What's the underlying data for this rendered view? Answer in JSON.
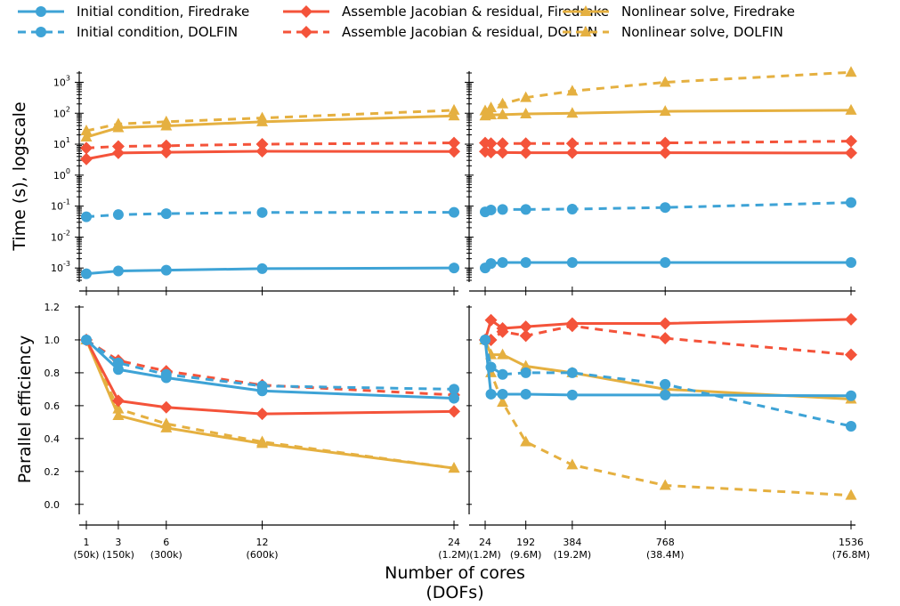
{
  "chart_data": {
    "type": "line",
    "xlabel_line1": "Number of cores",
    "xlabel_line2": "(DOFs)",
    "legend": [
      {
        "key": "ic_fd",
        "label": "Initial condition, Firedrake"
      },
      {
        "key": "ic_df",
        "label": "Initial condition, DOLFIN"
      },
      {
        "key": "asm_fd",
        "label": "Assemble Jacobian & residual, Firedrake"
      },
      {
        "key": "asm_df",
        "label": "Assemble Jacobian & residual, DOLFIN"
      },
      {
        "key": "nls_fd",
        "label": "Nonlinear solve, Firedrake"
      },
      {
        "key": "nls_df",
        "label": "Nonlinear solve, DOLFIN"
      }
    ],
    "series_styles": {
      "ic_fd": {
        "color": "#3ea3d6",
        "marker": "circle",
        "dash": false
      },
      "ic_df": {
        "color": "#3ea3d6",
        "marker": "circle",
        "dash": true
      },
      "asm_fd": {
        "color": "#f4533a",
        "marker": "diamond",
        "dash": false
      },
      "asm_df": {
        "color": "#f4533a",
        "marker": "diamond",
        "dash": true
      },
      "nls_fd": {
        "color": "#e5b040",
        "marker": "triangle",
        "dash": false
      },
      "nls_df": {
        "color": "#e5b040",
        "marker": "triangle",
        "dash": true
      }
    },
    "panels": [
      {
        "id": "strong_time",
        "ylabel": "Time (s), logscale",
        "yscale": "log",
        "ylim": [
          0.0004,
          2000
        ],
        "xlim": [
          0,
          25
        ],
        "yticks": [
          {
            "base": "10",
            "exp": "3",
            "v": 1000
          },
          {
            "base": "10",
            "exp": "2",
            "v": 100
          },
          {
            "base": "10",
            "exp": "1",
            "v": 10
          },
          {
            "base": "10",
            "exp": "0",
            "v": 1
          },
          {
            "base": "10",
            "exp": "-1",
            "v": 0.1
          },
          {
            "base": "10",
            "exp": "-2",
            "v": 0.01
          },
          {
            "base": "10",
            "exp": "-3",
            "v": 0.001
          }
        ],
        "x": [
          1,
          3,
          6,
          12,
          24
        ],
        "series": {
          "ic_fd": [
            0.00065,
            0.0008,
            0.00085,
            0.00095,
            0.001
          ],
          "ic_df": [
            0.045,
            0.053,
            0.057,
            0.062,
            0.063
          ],
          "asm_fd": [
            3.3,
            5.2,
            5.5,
            5.9,
            5.8
          ],
          "asm_df": [
            7.5,
            8.5,
            8.9,
            10,
            11
          ],
          "nls_fd": [
            17,
            34,
            39,
            53,
            82
          ],
          "nls_df": [
            27,
            45,
            53,
            70,
            125
          ]
        }
      },
      {
        "id": "weak_time",
        "ylabel": "",
        "yscale": "log",
        "ylim": [
          0.0004,
          2000
        ],
        "xlim": [
          0,
          1536
        ],
        "yticks": [],
        "x": [
          24,
          48,
          96,
          192,
          384,
          768,
          1536
        ],
        "series": {
          "ic_fd": [
            0.001,
            0.0014,
            0.0015,
            0.0015,
            0.0015,
            0.0015,
            0.0015
          ],
          "ic_df": [
            0.065,
            0.075,
            0.078,
            0.078,
            0.08,
            0.09,
            0.13
          ],
          "asm_fd": [
            5.8,
            5.5,
            5.4,
            5.3,
            5.3,
            5.3,
            5.2
          ],
          "asm_df": [
            11,
            10.5,
            10.5,
            10.5,
            10.5,
            11,
            12.5
          ],
          "nls_fd": [
            82,
            88,
            90,
            95,
            100,
            115,
            125
          ],
          "nls_df": [
            120,
            150,
            200,
            320,
            520,
            1000,
            2100
          ]
        }
      },
      {
        "id": "strong_eff",
        "ylabel": "Parallel efficiency",
        "yscale": "linear",
        "ylim": [
          -0.05,
          1.2
        ],
        "xlim": [
          0,
          25
        ],
        "yticks": [
          {
            "label": "0.0",
            "v": 0.0
          },
          {
            "label": "0.2",
            "v": 0.2
          },
          {
            "label": "0.4",
            "v": 0.4
          },
          {
            "label": "0.6",
            "v": 0.6
          },
          {
            "label": "0.8",
            "v": 0.8
          },
          {
            "label": "1.0",
            "v": 1.0
          },
          {
            "label": "1.2",
            "v": 1.2
          }
        ],
        "x": [
          1,
          3,
          6,
          12,
          24
        ],
        "series": {
          "ic_fd": [
            1.0,
            0.82,
            0.77,
            0.69,
            0.645
          ],
          "ic_df": [
            1.0,
            0.86,
            0.79,
            0.72,
            0.7
          ],
          "asm_fd": [
            1.0,
            0.63,
            0.59,
            0.55,
            0.565
          ],
          "asm_df": [
            1.0,
            0.875,
            0.81,
            0.725,
            0.665
          ],
          "nls_fd": [
            1.0,
            0.54,
            0.465,
            0.37,
            0.22
          ],
          "nls_df": [
            1.0,
            0.58,
            0.49,
            0.38,
            0.22
          ]
        }
      },
      {
        "id": "weak_eff",
        "ylabel": "",
        "yscale": "linear",
        "ylim": [
          -0.05,
          1.2
        ],
        "xlim": [
          0,
          1536
        ],
        "yticks": [],
        "x": [
          24,
          48,
          96,
          192,
          384,
          768,
          1536
        ],
        "series": {
          "ic_fd": [
            1.0,
            0.67,
            0.67,
            0.67,
            0.665,
            0.665,
            0.66
          ],
          "ic_df": [
            1.0,
            0.835,
            0.79,
            0.8,
            0.8,
            0.73,
            0.475
          ],
          "asm_fd": [
            1.0,
            1.12,
            1.07,
            1.08,
            1.1,
            1.1,
            1.125
          ],
          "asm_df": [
            1.0,
            1.0,
            1.05,
            1.025,
            1.085,
            1.01,
            0.91
          ],
          "nls_fd": [
            1.0,
            0.91,
            0.91,
            0.84,
            0.8,
            0.7,
            0.64
          ],
          "nls_df": [
            1.0,
            0.8,
            0.62,
            0.38,
            0.24,
            0.115,
            0.055
          ]
        }
      }
    ],
    "xticks_left": [
      {
        "x": 1,
        "l1": "1",
        "l2": "(50k)"
      },
      {
        "x": 3,
        "l1": "3",
        "l2": "(150k)"
      },
      {
        "x": 6,
        "l1": "6",
        "l2": "(300k)"
      },
      {
        "x": 12,
        "l1": "12",
        "l2": "(600k)"
      },
      {
        "x": 24,
        "l1": "24",
        "l2": "(1.2M)"
      }
    ],
    "xticks_right": [
      {
        "x": 24,
        "l1": "24",
        "l2": "(1.2M)"
      },
      {
        "x": 192,
        "l1": "192",
        "l2": "(9.6M)"
      },
      {
        "x": 384,
        "l1": "384",
        "l2": "(19.2M)"
      },
      {
        "x": 768,
        "l1": "768",
        "l2": "(38.4M)"
      },
      {
        "x": 1536,
        "l1": "1536",
        "l2": "(76.8M)"
      }
    ]
  }
}
